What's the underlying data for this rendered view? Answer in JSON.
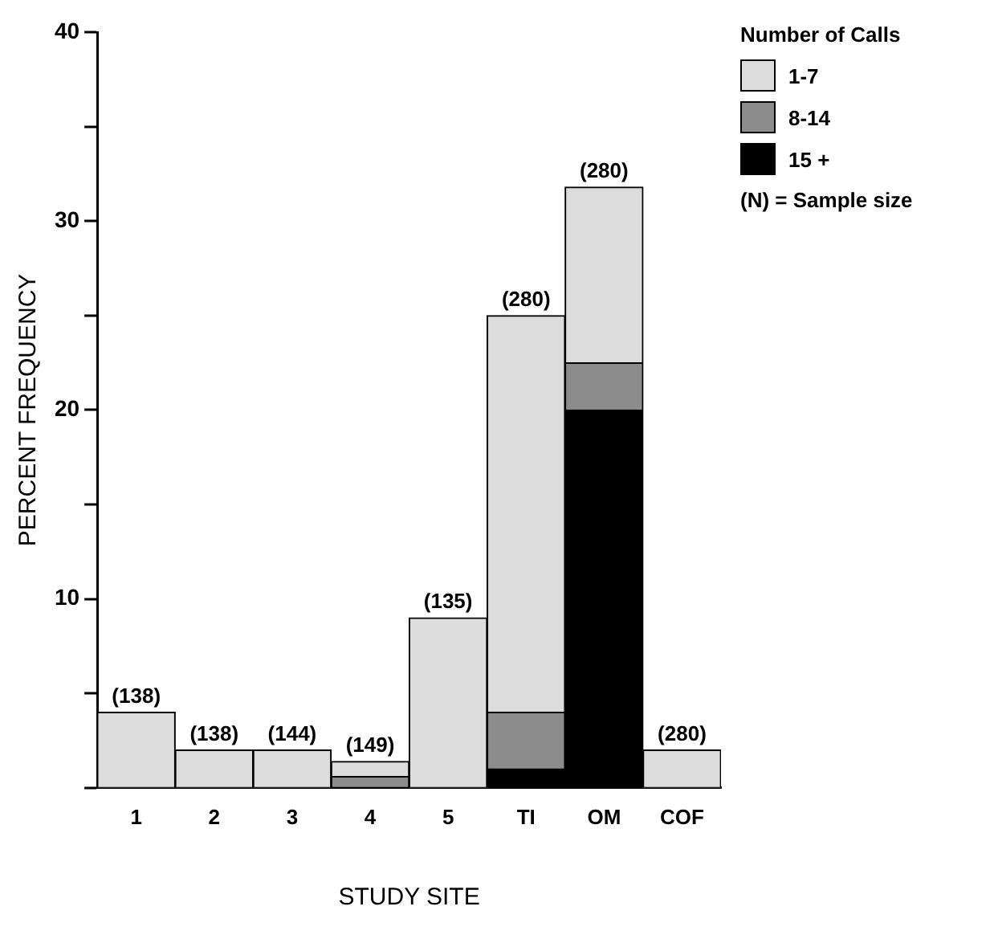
{
  "chart_data": {
    "type": "bar",
    "stacked": true,
    "xlabel": "STUDY SITE",
    "ylabel": "PERCENT FREQUENCY",
    "legend_title": "Number of Calls",
    "legend": "top right",
    "grid": false,
    "categories": [
      "1",
      "2",
      "3",
      "4",
      "5",
      "TI",
      "OM",
      "COF"
    ],
    "series": [
      {
        "name": "15 +",
        "color": "#000000",
        "values": [
          0,
          0,
          0,
          0,
          0,
          1,
          20,
          0
        ]
      },
      {
        "name": "8-14",
        "color": "#8c8c8c",
        "values": [
          0,
          0,
          0,
          0.6,
          0,
          3,
          2.5,
          0
        ]
      },
      {
        "name": "1-7",
        "color": "#dcdcdc",
        "values": [
          4,
          2,
          2,
          0.8,
          9,
          21,
          9.3,
          2
        ]
      }
    ],
    "ylim": [
      0,
      40
    ],
    "yticks": [
      {
        "value": 0,
        "label": null
      },
      {
        "value": 5,
        "label": null
      },
      10,
      {
        "value": 15,
        "label": null
      },
      20,
      {
        "value": 25,
        "label": null
      },
      30,
      {
        "value": 35,
        "label": null
      },
      40
    ],
    "annotations": [
      {
        "text": "(138)",
        "x": "1",
        "y": 4
      },
      {
        "text": "(138)",
        "x": "2",
        "y": 2
      },
      {
        "text": "(144)",
        "x": "3",
        "y": 2
      },
      {
        "text": "(149)",
        "x": "4",
        "y": 1.4
      },
      {
        "text": "(135)",
        "x": "5",
        "y": 9
      },
      {
        "text": "(280)",
        "x": "TI",
        "y": 25
      },
      {
        "text": "(280)",
        "x": "OM",
        "y": 31.8
      },
      {
        "text": "(280)",
        "x": "COF",
        "y": 2
      },
      "(N) = Sample size"
    ]
  }
}
